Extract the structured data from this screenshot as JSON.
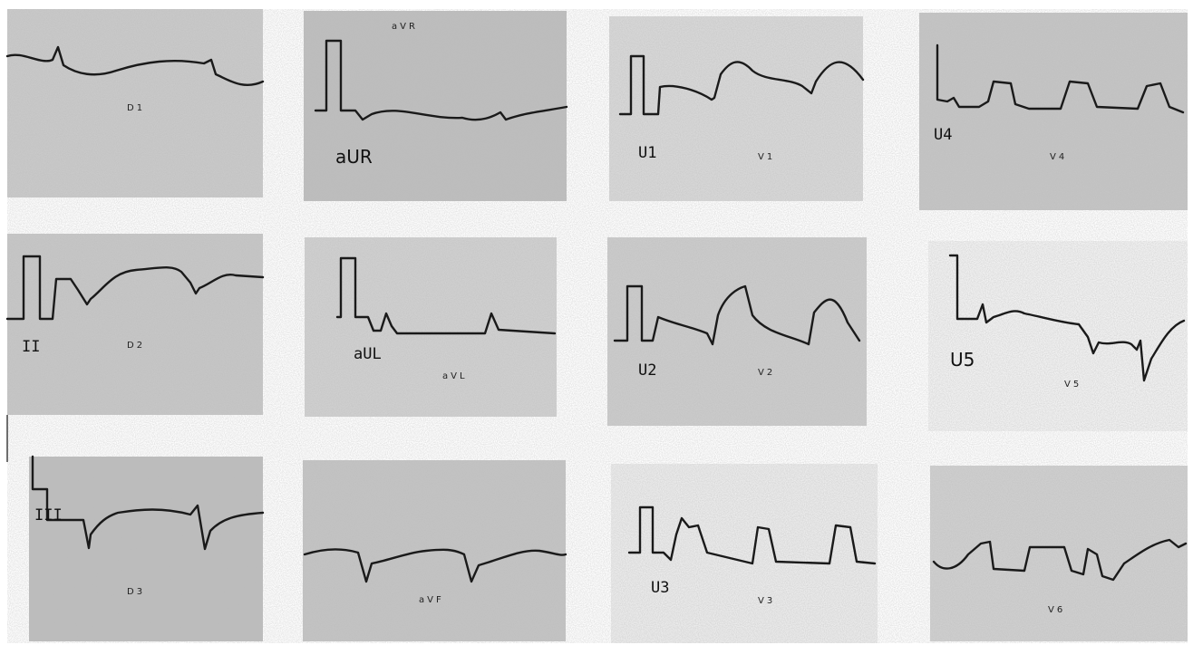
{
  "panels": [
    {
      "labels": [
        "D1"
      ]
    },
    {
      "labels": [
        "aVR",
        "aUR"
      ]
    },
    {
      "labels": [
        "U1",
        "V1"
      ]
    },
    {
      "labels": [
        "U4",
        "V4"
      ]
    },
    {
      "labels": [
        "II",
        "D2"
      ]
    },
    {
      "labels": [
        "aUL",
        "aVL"
      ]
    },
    {
      "labels": [
        "U2",
        "V2"
      ]
    },
    {
      "labels": [
        "U5",
        "V5"
      ]
    },
    {
      "labels": [
        "III",
        "D3"
      ]
    },
    {
      "labels": [
        "aVF"
      ]
    },
    {
      "labels": [
        "U3",
        "V3"
      ]
    },
    {
      "labels": [
        "V6"
      ]
    }
  ]
}
